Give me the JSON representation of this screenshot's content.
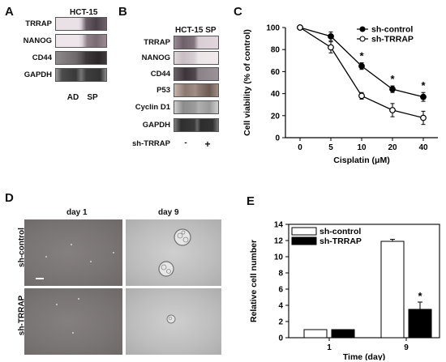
{
  "panels": {
    "A": {
      "letter": "A",
      "title": "HCT-15",
      "rows": [
        "TRRAP",
        "NANOG",
        "CD44",
        "GAPDH"
      ],
      "lanes": [
        "AD",
        "SP"
      ]
    },
    "B": {
      "letter": "B",
      "title": "HCT-15 SP",
      "rows": [
        "TRRAP",
        "NANOG",
        "CD44",
        "P53",
        "Cyclin D1",
        "GAPDH"
      ],
      "treatment_label": "sh-TRRAP",
      "lanes": [
        "-",
        "+"
      ]
    },
    "C": {
      "letter": "C"
    },
    "D": {
      "letter": "D",
      "columns": [
        "day 1",
        "day 9"
      ],
      "rows": [
        "sh-control",
        "sh-TRRAP"
      ]
    },
    "E": {
      "letter": "E"
    }
  },
  "chart_data": [
    {
      "type": "line",
      "panel": "C",
      "xlabel": "Cisplatin (μM)",
      "ylabel": "Cell viability (% of control)",
      "x": [
        0,
        5,
        10,
        20,
        40
      ],
      "x_tick_labels": [
        "0",
        "5",
        "10",
        "20",
        "40"
      ],
      "y_ticks": [
        0,
        20,
        40,
        60,
        80,
        100
      ],
      "ylim": [
        0,
        100
      ],
      "legend_position": "top-right",
      "series": [
        {
          "name": "sh-control",
          "marker": "filled-circle",
          "values": [
            100,
            92,
            65,
            44,
            37
          ],
          "errors": [
            1.5,
            4,
            3,
            3,
            4
          ]
        },
        {
          "name": "sh-TRRAP",
          "marker": "open-circle",
          "values": [
            100,
            82,
            38,
            25,
            18
          ],
          "errors": [
            1.5,
            5,
            3,
            6,
            6
          ]
        }
      ],
      "significance": [
        {
          "x": 10,
          "label": "*"
        },
        {
          "x": 20,
          "label": "*"
        },
        {
          "x": 40,
          "label": "*"
        }
      ]
    },
    {
      "type": "bar",
      "panel": "E",
      "xlabel": "Time (day)",
      "ylabel": "Relative cell number",
      "categories": [
        "1",
        "9"
      ],
      "y_ticks": [
        0,
        2,
        4,
        6,
        8,
        10,
        12,
        14
      ],
      "ylim": [
        0,
        14
      ],
      "legend_position": "top-left",
      "series": [
        {
          "name": "sh-control",
          "fill": "#ffffff",
          "values": [
            1.0,
            11.9
          ],
          "errors": [
            0,
            0.25
          ]
        },
        {
          "name": "sh-TRRAP",
          "fill": "#000000",
          "values": [
            1.0,
            3.5
          ],
          "errors": [
            0,
            0.9
          ]
        }
      ],
      "significance": [
        {
          "category": "9",
          "series": "sh-TRRAP",
          "label": "*"
        }
      ]
    }
  ]
}
